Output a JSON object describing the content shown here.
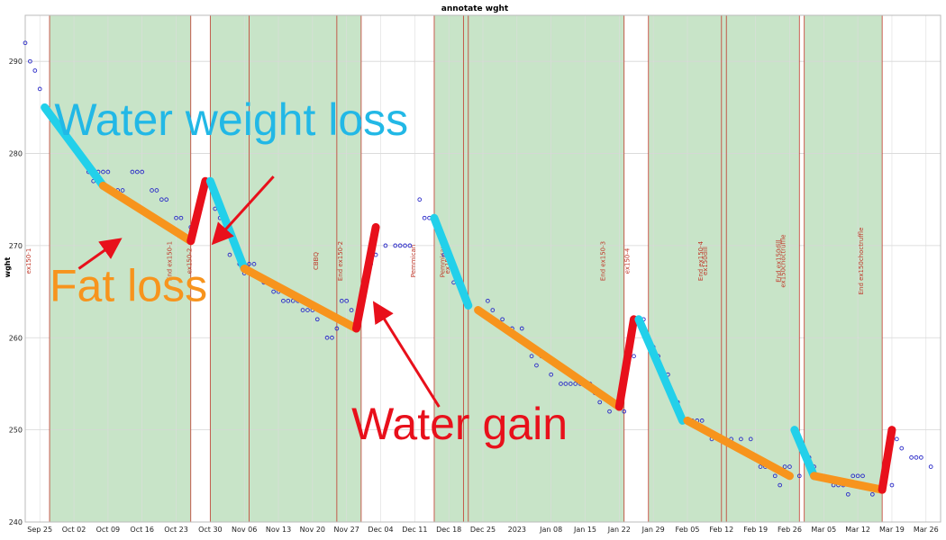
{
  "chart_data": {
    "type": "scatter",
    "title": "annotate wght",
    "xlabel": "",
    "ylabel": "wght",
    "xlim": [
      "2022-09-22",
      "2023-03-29"
    ],
    "ylim": [
      240,
      295
    ],
    "y_ticks": [
      240,
      250,
      260,
      270,
      280,
      290
    ],
    "x_ticks": [
      {
        "date": "2022-09-25",
        "label": "Sep 25"
      },
      {
        "date": "2022-10-02",
        "label": "Oct 02"
      },
      {
        "date": "2022-10-09",
        "label": "Oct 09"
      },
      {
        "date": "2022-10-16",
        "label": "Oct 16"
      },
      {
        "date": "2022-10-23",
        "label": "Oct 23"
      },
      {
        "date": "2022-10-30",
        "label": "Oct 30"
      },
      {
        "date": "2022-11-06",
        "label": "Nov 06"
      },
      {
        "date": "2022-11-13",
        "label": "Nov 13"
      },
      {
        "date": "2022-11-20",
        "label": "Nov 20"
      },
      {
        "date": "2022-11-27",
        "label": "Nov 27"
      },
      {
        "date": "2022-12-04",
        "label": "Dec 04"
      },
      {
        "date": "2022-12-11",
        "label": "Dec 11"
      },
      {
        "date": "2022-12-18",
        "label": "Dec 18"
      },
      {
        "date": "2022-12-25",
        "label": "Dec 25"
      },
      {
        "date": "2023-01-01",
        "label": "2023"
      },
      {
        "date": "2023-01-08",
        "label": "Jan 08"
      },
      {
        "date": "2023-01-15",
        "label": "Jan 15"
      },
      {
        "date": "2023-01-22",
        "label": "Jan 22"
      },
      {
        "date": "2023-01-29",
        "label": "Jan 29"
      },
      {
        "date": "2023-02-05",
        "label": "Feb 05"
      },
      {
        "date": "2023-02-12",
        "label": "Feb 12"
      },
      {
        "date": "2023-02-19",
        "label": "Feb 19"
      },
      {
        "date": "2023-02-26",
        "label": "Feb 26"
      },
      {
        "date": "2023-03-05",
        "label": "Mar 05"
      },
      {
        "date": "2023-03-12",
        "label": "Mar 12"
      },
      {
        "date": "2023-03-19",
        "label": "Mar 19"
      },
      {
        "date": "2023-03-26",
        "label": "Mar 26"
      }
    ],
    "grid": true,
    "shaded_periods": [
      {
        "start": "2022-09-27",
        "end": "2022-10-26"
      },
      {
        "start": "2022-10-30",
        "end": "2022-11-30"
      },
      {
        "start": "2022-12-15",
        "end": "2023-01-23"
      },
      {
        "start": "2023-01-28",
        "end": "2023-02-28"
      },
      {
        "start": "2023-03-01",
        "end": "2023-03-17"
      }
    ],
    "events": [
      {
        "date": "2022-09-27",
        "label": "ex150-1"
      },
      {
        "date": "2022-10-26",
        "label": "End ex150-1"
      },
      {
        "date": "2022-10-30",
        "label": "ex150-2"
      },
      {
        "date": "2022-11-07",
        "label": ""
      },
      {
        "date": "2022-11-25",
        "label": "CBBQ"
      },
      {
        "date": "2022-11-30",
        "label": "End ex150-2"
      },
      {
        "date": "2022-12-15",
        "label": "Pemmican"
      },
      {
        "date": "2022-12-21",
        "label": "Pemmican"
      },
      {
        "date": "2022-12-22",
        "label": "ex150-3"
      },
      {
        "date": "2023-01-23",
        "label": "End ex150-3"
      },
      {
        "date": "2023-01-28",
        "label": "ex150-4"
      },
      {
        "date": "2023-02-12",
        "label": "End ex150-4"
      },
      {
        "date": "2023-02-13",
        "label": "ex150dill"
      },
      {
        "date": "2023-02-28",
        "label": "End ex150dill"
      },
      {
        "date": "2023-03-01",
        "label": "ex150choctruffle"
      },
      {
        "date": "2023-03-17",
        "label": "End ex150choctruffle"
      }
    ],
    "series": [
      {
        "type": "scatter",
        "points": [
          [
            "2022-09-22",
            292
          ],
          [
            "2022-09-23",
            290
          ],
          [
            "2022-09-24",
            289
          ],
          [
            "2022-09-25",
            287
          ],
          [
            "2022-10-02",
            281
          ],
          [
            "2022-10-05",
            278
          ],
          [
            "2022-10-06",
            277
          ],
          [
            "2022-10-07",
            278
          ],
          [
            "2022-10-08",
            278
          ],
          [
            "2022-10-09",
            278
          ],
          [
            "2022-10-10",
            276
          ],
          [
            "2022-10-11",
            276
          ],
          [
            "2022-10-12",
            276
          ],
          [
            "2022-10-14",
            278
          ],
          [
            "2022-10-15",
            278
          ],
          [
            "2022-10-16",
            278
          ],
          [
            "2022-10-18",
            276
          ],
          [
            "2022-10-19",
            276
          ],
          [
            "2022-10-20",
            275
          ],
          [
            "2022-10-21",
            275
          ],
          [
            "2022-10-23",
            273
          ],
          [
            "2022-10-24",
            273
          ],
          [
            "2022-10-26",
            272
          ],
          [
            "2022-10-28",
            274
          ],
          [
            "2022-10-31",
            274
          ],
          [
            "2022-11-01",
            273
          ],
          [
            "2022-11-02",
            271
          ],
          [
            "2022-11-03",
            269
          ],
          [
            "2022-11-05",
            268
          ],
          [
            "2022-11-06",
            267
          ],
          [
            "2022-11-07",
            268
          ],
          [
            "2022-11-08",
            268
          ],
          [
            "2022-11-10",
            266
          ],
          [
            "2022-11-12",
            265
          ],
          [
            "2022-11-13",
            265
          ],
          [
            "2022-11-14",
            264
          ],
          [
            "2022-11-15",
            264
          ],
          [
            "2022-11-16",
            264
          ],
          [
            "2022-11-17",
            264
          ],
          [
            "2022-11-18",
            263
          ],
          [
            "2022-11-19",
            263
          ],
          [
            "2022-11-20",
            263
          ],
          [
            "2022-11-21",
            262
          ],
          [
            "2022-11-23",
            260
          ],
          [
            "2022-11-24",
            260
          ],
          [
            "2022-11-25",
            261
          ],
          [
            "2022-11-26",
            264
          ],
          [
            "2022-11-27",
            264
          ],
          [
            "2022-11-28",
            263
          ],
          [
            "2022-12-01",
            267
          ],
          [
            "2022-12-02",
            268
          ],
          [
            "2022-12-03",
            269
          ],
          [
            "2022-12-05",
            270
          ],
          [
            "2022-12-07",
            270
          ],
          [
            "2022-12-08",
            270
          ],
          [
            "2022-12-09",
            270
          ],
          [
            "2022-12-10",
            270
          ],
          [
            "2022-12-12",
            275
          ],
          [
            "2022-12-13",
            273
          ],
          [
            "2022-12-14",
            273
          ],
          [
            "2022-12-15",
            273
          ],
          [
            "2022-12-17",
            269
          ],
          [
            "2022-12-19",
            266
          ],
          [
            "2022-12-20",
            266
          ],
          [
            "2022-12-22",
            264
          ],
          [
            "2022-12-24",
            263
          ],
          [
            "2022-12-26",
            264
          ],
          [
            "2022-12-27",
            263
          ],
          [
            "2022-12-29",
            262
          ],
          [
            "2022-12-31",
            261
          ],
          [
            "2023-01-02",
            261
          ],
          [
            "2023-01-04",
            258
          ],
          [
            "2023-01-05",
            257
          ],
          [
            "2023-01-06",
            258
          ],
          [
            "2023-01-08",
            256
          ],
          [
            "2023-01-10",
            255
          ],
          [
            "2023-01-11",
            255
          ],
          [
            "2023-01-12",
            255
          ],
          [
            "2023-01-13",
            255
          ],
          [
            "2023-01-14",
            255
          ],
          [
            "2023-01-15",
            255
          ],
          [
            "2023-01-16",
            255
          ],
          [
            "2023-01-17",
            254
          ],
          [
            "2023-01-18",
            253
          ],
          [
            "2023-01-20",
            252
          ],
          [
            "2023-01-23",
            252
          ],
          [
            "2023-01-25",
            258
          ],
          [
            "2023-01-27",
            262
          ],
          [
            "2023-01-29",
            259
          ],
          [
            "2023-01-30",
            258
          ],
          [
            "2023-01-31",
            256
          ],
          [
            "2023-02-01",
            256
          ],
          [
            "2023-02-02",
            253
          ],
          [
            "2023-02-03",
            253
          ],
          [
            "2023-02-05",
            251
          ],
          [
            "2023-02-06",
            251
          ],
          [
            "2023-02-07",
            251
          ],
          [
            "2023-02-08",
            251
          ],
          [
            "2023-02-09",
            250
          ],
          [
            "2023-02-10",
            249
          ],
          [
            "2023-02-12",
            249
          ],
          [
            "2023-02-14",
            249
          ],
          [
            "2023-02-16",
            249
          ],
          [
            "2023-02-18",
            249
          ],
          [
            "2023-02-20",
            246
          ],
          [
            "2023-02-21",
            246
          ],
          [
            "2023-02-23",
            245
          ],
          [
            "2023-02-24",
            244
          ],
          [
            "2023-02-25",
            246
          ],
          [
            "2023-02-26",
            246
          ],
          [
            "2023-02-28",
            245
          ],
          [
            "2023-03-02",
            247
          ],
          [
            "2023-03-03",
            246
          ],
          [
            "2023-03-05",
            245
          ],
          [
            "2023-03-07",
            244
          ],
          [
            "2023-03-08",
            244
          ],
          [
            "2023-03-09",
            244
          ],
          [
            "2023-03-10",
            243
          ],
          [
            "2023-03-11",
            245
          ],
          [
            "2023-03-12",
            245
          ],
          [
            "2023-03-13",
            245
          ],
          [
            "2023-03-15",
            243
          ],
          [
            "2023-03-17",
            244
          ],
          [
            "2023-03-19",
            244
          ],
          [
            "2023-03-20",
            249
          ],
          [
            "2023-03-21",
            248
          ],
          [
            "2023-03-23",
            247
          ],
          [
            "2023-03-24",
            247
          ],
          [
            "2023-03-25",
            247
          ],
          [
            "2023-03-27",
            246
          ]
        ]
      }
    ],
    "trend_segments": [
      {
        "kind": "water-loss",
        "color": "#22d0ea",
        "from": [
          "2022-09-26",
          285
        ],
        "to": [
          "2022-10-08",
          276.5
        ]
      },
      {
        "kind": "fat-loss",
        "color": "#f7941d",
        "from": [
          "2022-10-08",
          276.5
        ],
        "to": [
          "2022-10-26",
          270.5
        ]
      },
      {
        "kind": "water-gain",
        "color": "#e8101b",
        "from": [
          "2022-10-26",
          270.5
        ],
        "to": [
          "2022-10-29",
          277
        ]
      },
      {
        "kind": "water-loss",
        "color": "#22d0ea",
        "from": [
          "2022-10-30",
          277
        ],
        "to": [
          "2022-11-06",
          267.5
        ]
      },
      {
        "kind": "fat-loss",
        "color": "#f7941d",
        "from": [
          "2022-11-06",
          267.5
        ],
        "to": [
          "2022-11-29",
          261
        ]
      },
      {
        "kind": "water-gain",
        "color": "#e8101b",
        "from": [
          "2022-11-29",
          261
        ],
        "to": [
          "2022-12-03",
          272
        ]
      },
      {
        "kind": "water-loss",
        "color": "#22d0ea",
        "from": [
          "2022-12-15",
          273
        ],
        "to": [
          "2022-12-22",
          263.5
        ]
      },
      {
        "kind": "fat-loss",
        "color": "#f7941d",
        "from": [
          "2022-12-24",
          263
        ],
        "to": [
          "2023-01-22",
          252.5
        ]
      },
      {
        "kind": "water-gain",
        "color": "#e8101b",
        "from": [
          "2023-01-22",
          252.5
        ],
        "to": [
          "2023-01-25",
          262
        ]
      },
      {
        "kind": "water-loss",
        "color": "#22d0ea",
        "from": [
          "2023-01-26",
          262
        ],
        "to": [
          "2023-02-04",
          251
        ]
      },
      {
        "kind": "fat-loss",
        "color": "#f7941d",
        "from": [
          "2023-02-05",
          251
        ],
        "to": [
          "2023-02-26",
          245
        ]
      },
      {
        "kind": "water-loss",
        "color": "#22d0ea",
        "from": [
          "2023-02-27",
          250
        ],
        "to": [
          "2023-03-03",
          245
        ]
      },
      {
        "kind": "fat-loss",
        "color": "#f7941d",
        "from": [
          "2023-03-03",
          245
        ],
        "to": [
          "2023-03-17",
          243.5
        ]
      },
      {
        "kind": "water-gain",
        "color": "#e8101b",
        "from": [
          "2023-03-17",
          243.5
        ],
        "to": [
          "2023-03-19",
          250
        ]
      }
    ],
    "annotations": [
      {
        "text": "Water weight loss",
        "color": "#22b8e6",
        "at": [
          "2022-09-28",
          282
        ],
        "arrow_from": [
          "2022-11-12",
          277.5
        ],
        "arrow_to": [
          "2022-10-31",
          270.5
        ]
      },
      {
        "text": "Fat loss",
        "color": "#f7941d",
        "at": [
          "2022-09-27",
          264
        ],
        "arrow_from": [
          "2022-10-03",
          267.5
        ],
        "arrow_to": [
          "2022-10-11",
          270.5
        ]
      },
      {
        "text": "Water gain",
        "color": "#e8101b",
        "at": [
          "2022-11-28",
          249
        ],
        "arrow_from": [
          "2022-12-16",
          252.5
        ],
        "arrow_to": [
          "2022-12-03",
          263.5
        ]
      }
    ]
  }
}
